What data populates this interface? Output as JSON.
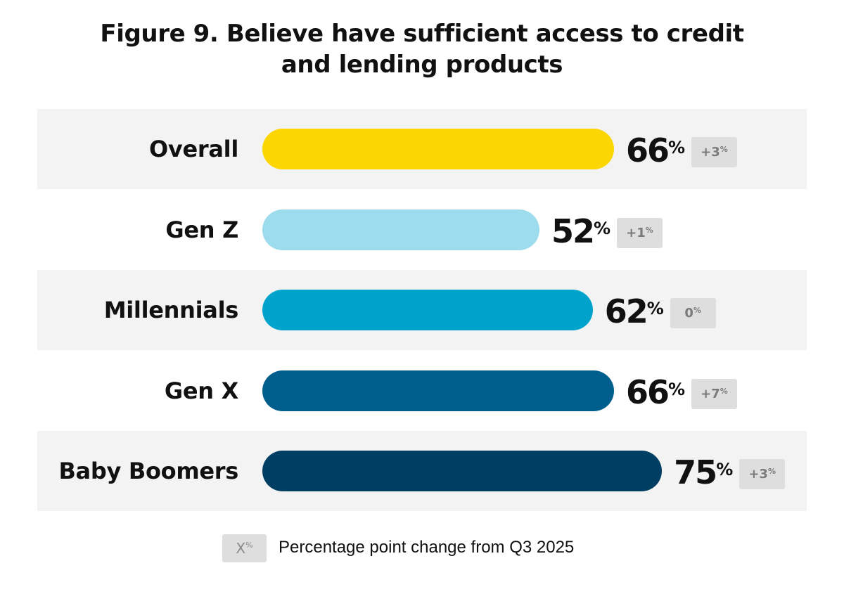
{
  "title_line1": "Figure 9. Believe have sufficient access to credit",
  "title_line2": "and lending products",
  "legend": {
    "chip_symbol": "X",
    "chip_unit": "%",
    "text": "Percentage point change from Q3 2025",
    "chip_bg": "#dedede"
  },
  "chart_data": {
    "type": "bar",
    "orientation": "horizontal",
    "unit": "%",
    "categories": [
      "Overall",
      "Gen Z",
      "Millennials",
      "Gen X",
      "Baby Boomers"
    ],
    "values": [
      66,
      52,
      62,
      66,
      75
    ],
    "changes": [
      "+3",
      "+1",
      "0",
      "+7",
      "+3"
    ],
    "colors": [
      "#fcd600",
      "#9cdcec",
      "#00a3cc",
      "#005e8c",
      "#003f63"
    ],
    "band_color": "#f3f3f3",
    "grid": false
  }
}
